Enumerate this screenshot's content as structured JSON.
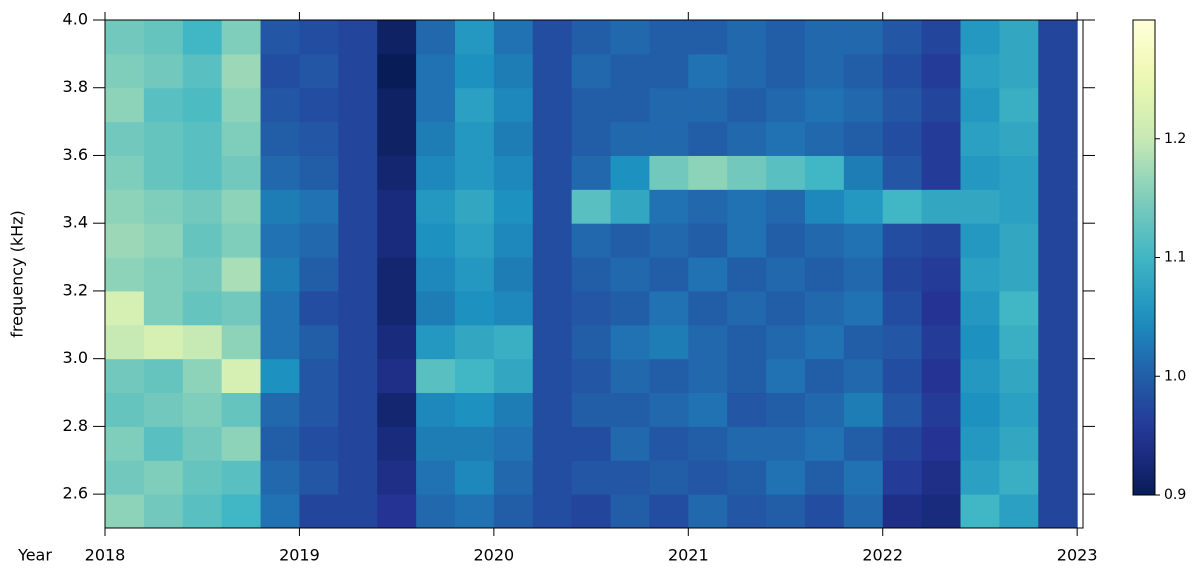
{
  "chart_data": {
    "type": "heatmap",
    "colormap": "YlGnBu",
    "xlabel": "Year",
    "ylabel": "frequency (kHz)",
    "xlim": [
      2018,
      2023.03
    ],
    "xticks": [
      2018,
      2019,
      2020,
      2021,
      2022,
      2023
    ],
    "ylim": [
      2.5,
      4.0
    ],
    "yticks": [
      2.6,
      2.8,
      {
        "value": 3.0,
        "label": "3.0"
      },
      3.2,
      3.4,
      3.6,
      3.8,
      {
        "value": 4.0,
        "label": "4.0"
      }
    ],
    "zlim": [
      0.9,
      1.3
    ],
    "zticks": [
      0.9,
      {
        "value": 1.0,
        "label": "1.0"
      },
      1.1,
      1.2
    ],
    "x": [
      2018.1,
      2018.3,
      2018.5,
      2018.7,
      2018.9,
      2019.1,
      2019.3,
      2019.5,
      2019.7,
      2019.9,
      2020.1,
      2020.3,
      2020.5,
      2020.7,
      2020.9,
      2021.1,
      2021.3,
      2021.5,
      2021.7,
      2021.9,
      2022.1,
      2022.3,
      2022.5,
      2022.7,
      2022.9
    ],
    "y": [
      2.55,
      2.65,
      2.75,
      2.85,
      2.95,
      3.05,
      3.15,
      3.25,
      3.35,
      3.45,
      3.55,
      3.65,
      3.75,
      3.85,
      3.95
    ],
    "z": [
      [
        1.16,
        1.14,
        1.12,
        1.1,
        1.02,
        0.97,
        0.97,
        0.95,
        1.01,
        1.02,
        1.0,
        0.98,
        0.97,
        1.0,
        0.98,
        1.01,
        0.99,
        1.0,
        0.98,
        1.01,
        0.94,
        0.93,
        1.1,
        1.07,
        0.97
      ],
      [
        1.14,
        1.15,
        1.13,
        1.12,
        1.01,
        0.99,
        0.97,
        0.94,
        1.02,
        1.04,
        1.01,
        0.98,
        0.99,
        0.99,
        1.0,
        0.99,
        1.0,
        1.02,
        1.0,
        1.02,
        0.96,
        0.94,
        1.07,
        1.09,
        0.97
      ],
      [
        1.15,
        1.12,
        1.14,
        1.16,
        1.0,
        0.98,
        0.97,
        0.93,
        1.03,
        1.03,
        1.02,
        0.98,
        0.98,
        1.01,
        0.99,
        1.0,
        1.01,
        1.01,
        1.02,
        1.0,
        0.97,
        0.95,
        1.06,
        1.08,
        0.97
      ],
      [
        1.13,
        1.14,
        1.15,
        1.13,
        1.01,
        0.99,
        0.97,
        0.92,
        1.04,
        1.05,
        1.03,
        0.98,
        1.0,
        1.0,
        1.01,
        1.02,
        0.99,
        1.0,
        1.01,
        1.03,
        0.99,
        0.96,
        1.05,
        1.07,
        0.97
      ],
      [
        1.14,
        1.13,
        1.16,
        1.22,
        1.05,
        0.99,
        0.97,
        0.94,
        1.12,
        1.1,
        1.08,
        0.98,
        0.99,
        1.01,
        1.0,
        1.01,
        1.0,
        1.02,
        1.0,
        1.01,
        0.98,
        0.95,
        1.06,
        1.08,
        0.97
      ],
      [
        1.2,
        1.22,
        1.2,
        1.16,
        1.02,
        1.0,
        0.97,
        0.93,
        1.06,
        1.08,
        1.09,
        0.98,
        1.0,
        1.02,
        1.03,
        1.01,
        1.0,
        1.01,
        1.02,
        1.0,
        0.99,
        0.96,
        1.05,
        1.09,
        0.97
      ],
      [
        1.22,
        1.15,
        1.13,
        1.14,
        1.02,
        0.98,
        0.97,
        0.92,
        1.03,
        1.05,
        1.04,
        0.98,
        0.99,
        1.0,
        1.02,
        1.0,
        1.01,
        1.0,
        1.01,
        1.02,
        0.98,
        0.95,
        1.06,
        1.1,
        0.97
      ],
      [
        1.16,
        1.15,
        1.14,
        1.18,
        1.03,
        1.0,
        0.97,
        0.92,
        1.04,
        1.06,
        1.03,
        0.98,
        1.0,
        1.01,
        1.0,
        1.02,
        1.0,
        1.01,
        1.0,
        1.01,
        0.97,
        0.96,
        1.07,
        1.08,
        0.97
      ],
      [
        1.17,
        1.16,
        1.13,
        1.15,
        1.02,
        1.01,
        0.97,
        0.93,
        1.05,
        1.07,
        1.04,
        0.98,
        1.01,
        1.0,
        1.01,
        1.0,
        1.02,
        1.0,
        1.01,
        1.02,
        0.98,
        0.97,
        1.06,
        1.08,
        0.97
      ],
      [
        1.16,
        1.15,
        1.14,
        1.16,
        1.03,
        1.02,
        0.97,
        0.93,
        1.06,
        1.08,
        1.05,
        0.98,
        1.12,
        1.08,
        1.02,
        1.01,
        1.02,
        1.01,
        1.04,
        1.06,
        1.1,
        1.08,
        1.08,
        1.07,
        0.97
      ],
      [
        1.15,
        1.13,
        1.12,
        1.14,
        1.01,
        1.0,
        0.97,
        0.92,
        1.04,
        1.06,
        1.04,
        0.98,
        1.01,
        1.05,
        1.14,
        1.16,
        1.14,
        1.12,
        1.1,
        1.03,
        0.99,
        0.96,
        1.06,
        1.07,
        0.97
      ],
      [
        1.14,
        1.13,
        1.12,
        1.15,
        1.0,
        0.99,
        0.97,
        0.91,
        1.03,
        1.06,
        1.03,
        0.98,
        1.0,
        1.01,
        1.01,
        1.0,
        1.01,
        1.02,
        1.01,
        1.0,
        0.98,
        0.96,
        1.07,
        1.08,
        0.97
      ],
      [
        1.16,
        1.12,
        1.11,
        1.16,
        0.99,
        0.98,
        0.97,
        0.91,
        1.02,
        1.07,
        1.04,
        0.98,
        1.0,
        1.0,
        1.01,
        1.01,
        1.0,
        1.01,
        1.02,
        1.01,
        0.99,
        0.97,
        1.06,
        1.09,
        0.97
      ],
      [
        1.15,
        1.14,
        1.12,
        1.17,
        0.98,
        0.99,
        0.97,
        0.9,
        1.02,
        1.05,
        1.03,
        0.98,
        1.01,
        1.0,
        1.0,
        1.02,
        1.01,
        1.0,
        1.01,
        1.0,
        0.98,
        0.96,
        1.07,
        1.08,
        0.97
      ],
      [
        1.14,
        1.13,
        1.1,
        1.15,
        0.99,
        0.98,
        0.97,
        0.91,
        1.01,
        1.06,
        1.02,
        0.98,
        1.0,
        1.01,
        1.0,
        1.0,
        1.01,
        1.0,
        1.01,
        1.01,
        0.99,
        0.97,
        1.06,
        1.08,
        0.97
      ]
    ]
  }
}
